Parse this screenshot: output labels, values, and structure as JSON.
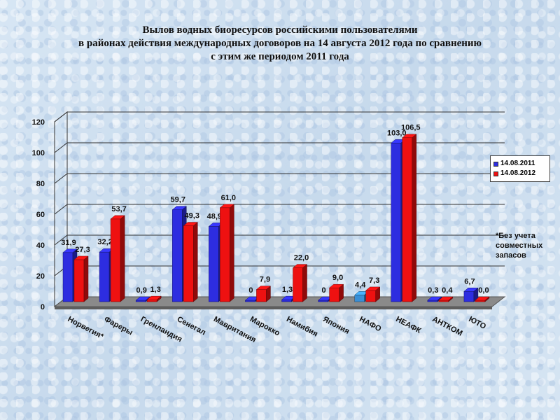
{
  "title_lines": [
    "Вылов водных биоресурсов российскими пользователями",
    "в районах действия международных договоров на 14 августа 2012 года по сравнению",
    "с этим же периодом 2011 года"
  ],
  "note_lines": [
    "*Без учета",
    "совместных",
    "запасов"
  ],
  "colors": {
    "series_2011": "#2d2de0",
    "series_2012": "#ee1111",
    "nafo_2011": "#3a8fd6"
  },
  "chart_data": {
    "type": "bar",
    "title": "Вылов водных биоресурсов российскими пользователями в районах действия международных договоров на 14 августа 2012 года по сравнению с этим же периодом 2011 года",
    "categories": [
      "Норвегия*",
      "Фареры",
      "Гренландия",
      "Сенегал",
      "Мавритания",
      "Марокко",
      "Намибия",
      "Япония",
      "НАФО",
      "НЕАФК",
      "АНТКОМ",
      "ЮТО"
    ],
    "series": [
      {
        "name": "14.08.2011",
        "values": [
          31.9,
          32.2,
          0.9,
          59.7,
          48.9,
          0,
          1.3,
          0,
          4.4,
          103.0,
          0.3,
          6.7
        ],
        "labels": [
          "31,9",
          "32,2",
          "0,9",
          "59,7",
          "48,9",
          "0",
          "1,3",
          "0",
          "4,4",
          "103,0",
          "0,3",
          "6,7"
        ]
      },
      {
        "name": "14.08.2012",
        "values": [
          27.3,
          53.7,
          1.3,
          49.3,
          61.0,
          7.9,
          22.0,
          9.0,
          7.3,
          106.5,
          0.4,
          0.0
        ],
        "labels": [
          "27,3",
          "53,7",
          "1,3",
          "49,3",
          "61,0",
          "7,9",
          "22,0",
          "9,0",
          "7,3",
          "106,5",
          "0,4",
          "0,0"
        ]
      }
    ],
    "y_ticks": [
      "0",
      "20",
      "40",
      "60",
      "80",
      "100",
      "120"
    ],
    "ylim": [
      0,
      120
    ],
    "grid": true,
    "legend": "right"
  }
}
